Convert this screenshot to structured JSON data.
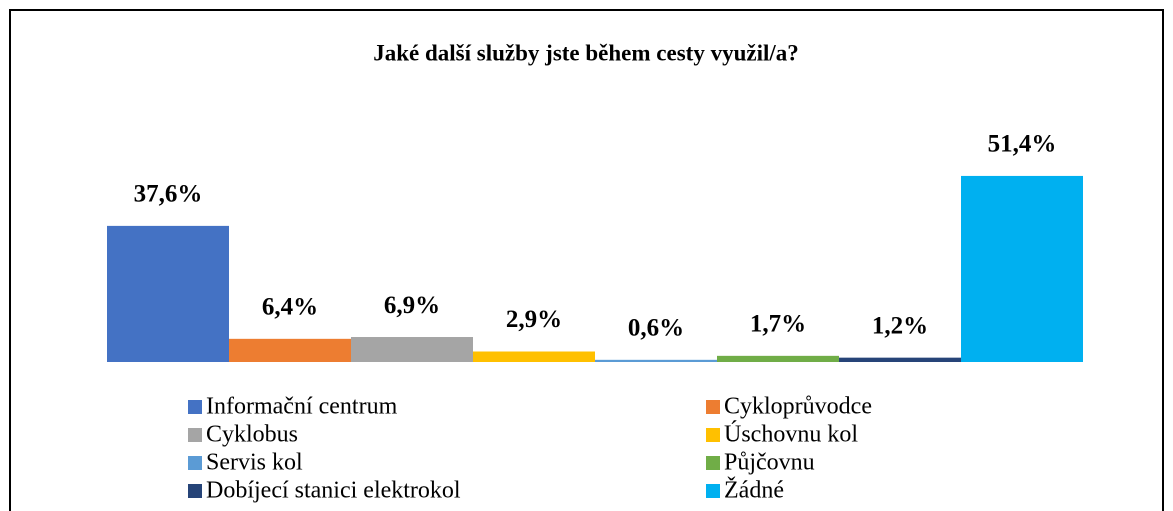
{
  "chart_data": {
    "type": "bar",
    "title": "Jaké další služby jste během cesty využil/a?",
    "categories": [
      "Informační centrum",
      "Cykloprůvodce",
      "Cyklobus",
      "Úschovnu kol",
      "Servis kol",
      "Půjčovnu",
      "Dobíjecí stanici elektrokol",
      "Žádné"
    ],
    "values": [
      37.6,
      6.4,
      6.9,
      2.9,
      0.6,
      1.7,
      1.2,
      51.4
    ],
    "value_labels": [
      "37,6%",
      "6,4%",
      "6,9%",
      "2,9%",
      "0,6%",
      "1,7%",
      "1,2%",
      "51,4%"
    ],
    "colors": [
      "#4472c4",
      "#ed7d31",
      "#a5a5a5",
      "#ffc000",
      "#5b9bd5",
      "#70ad47",
      "#264478",
      "#00b0f0"
    ]
  }
}
